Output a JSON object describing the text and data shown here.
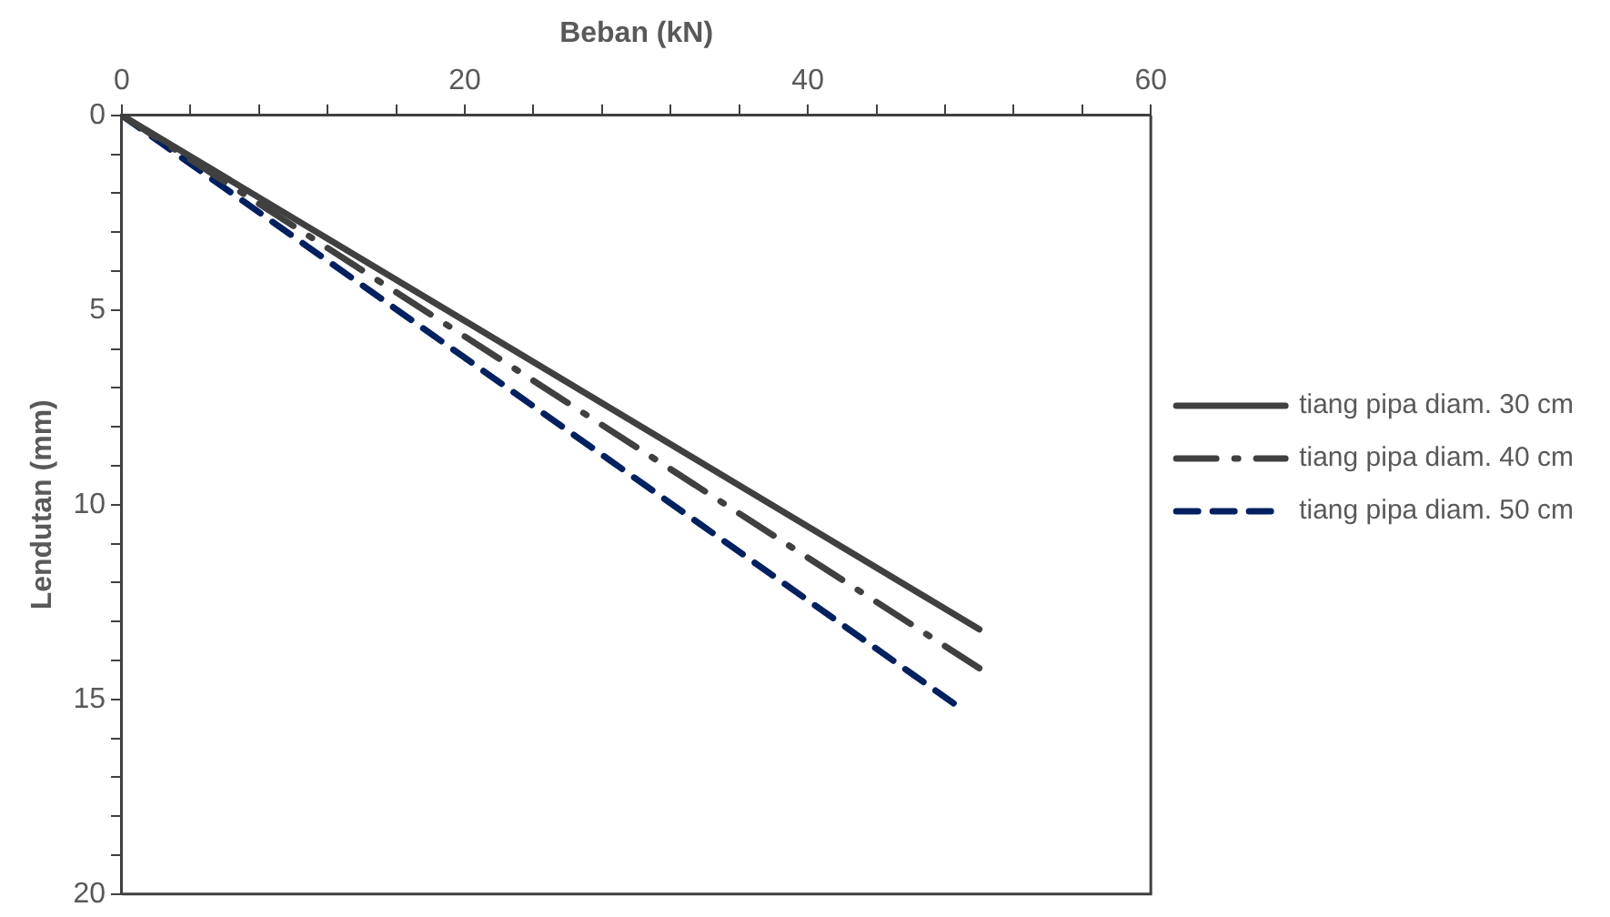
{
  "chart_data": {
    "type": "line",
    "xlabel": "Beban (kN)",
    "ylabel": "Lendutan (mm)",
    "xlim": [
      0,
      60
    ],
    "xticks": [
      0,
      {
        "value": 4,
        "label": null
      },
      {
        "value": 8,
        "label": null
      },
      {
        "value": 12,
        "label": null
      },
      {
        "value": 16,
        "label": null
      },
      20,
      {
        "value": 24,
        "label": null
      },
      {
        "value": 28,
        "label": null
      },
      {
        "value": 32,
        "label": null
      },
      {
        "value": 36,
        "label": null
      },
      40,
      {
        "value": 44,
        "label": null
      },
      {
        "value": 48,
        "label": null
      },
      {
        "value": 52,
        "label": null
      },
      {
        "value": 56,
        "label": null
      },
      60
    ],
    "ylim": [
      20,
      0
    ],
    "yticks": [
      0,
      {
        "value": 1,
        "label": null
      },
      {
        "value": 2,
        "label": null
      },
      {
        "value": 3,
        "label": null
      },
      {
        "value": 4,
        "label": null
      },
      5,
      {
        "value": 6,
        "label": null
      },
      {
        "value": 7,
        "label": null
      },
      {
        "value": 8,
        "label": null
      },
      {
        "value": 9,
        "label": null
      },
      10,
      {
        "value": 11,
        "label": null
      },
      {
        "value": 12,
        "label": null
      },
      {
        "value": 13,
        "label": null
      },
      {
        "value": 14,
        "label": null
      },
      15,
      {
        "value": 16,
        "label": null
      },
      {
        "value": 17,
        "label": null
      },
      {
        "value": 18,
        "label": null
      },
      {
        "value": 19,
        "label": null
      },
      20
    ],
    "grid": false,
    "legend": "right",
    "marker": "none",
    "series": [
      {
        "name": "tiang pipa diam. 30 cm",
        "color": "#404040",
        "line_style": "solid",
        "x": [
          0,
          50
        ],
        "values": [
          0,
          13.2
        ]
      },
      {
        "name": "tiang pipa diam. 40 cm",
        "color": "#404040",
        "line_style": "dashdot",
        "x": [
          0,
          50
        ],
        "values": [
          0,
          14.2
        ]
      },
      {
        "name": "tiang pipa diam. 50 cm",
        "color": "#002060",
        "line_style": "dashed",
        "x": [
          0,
          48.5
        ],
        "values": [
          0,
          15.1
        ]
      }
    ]
  }
}
